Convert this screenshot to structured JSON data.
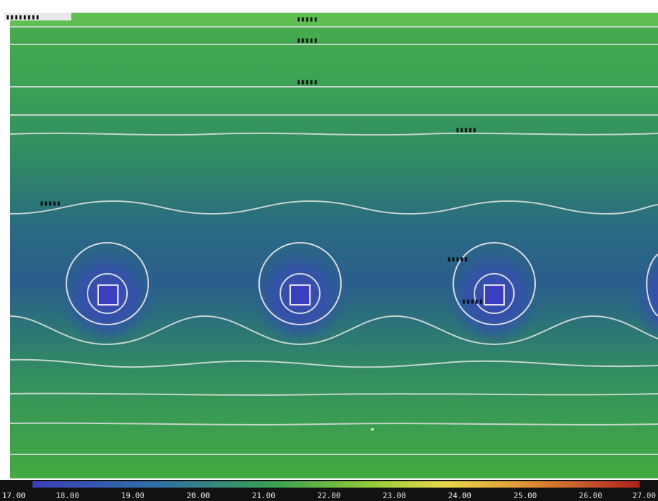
{
  "colors": {
    "scale_low": "#3b3fb8",
    "scale_mid": "#3aa050",
    "scale_high": "#b02020",
    "isoline": "#c9d6cf",
    "frame": "#111111"
  },
  "header": {
    "left_tag": "▮▮▮▮▮▮▮▮"
  },
  "contour_labels": [
    {
      "text": "▮▮▮▮▮"
    },
    {
      "text": "▮▮▮▮▮"
    },
    {
      "text": "▮▮▮▮▮"
    },
    {
      "text": "▮▮▮▮▮"
    },
    {
      "text": "▮▮▮▮▮"
    },
    {
      "text": "▮▮▮▮▮"
    },
    {
      "text": "▮▮▮▮▮"
    }
  ],
  "color_scale": {
    "ticks": [
      "17.00",
      "18.00",
      "19.00",
      "20.00",
      "21.00",
      "22.00",
      "23.00",
      "24.00",
      "25.00",
      "26.00",
      "27.00"
    ]
  }
}
